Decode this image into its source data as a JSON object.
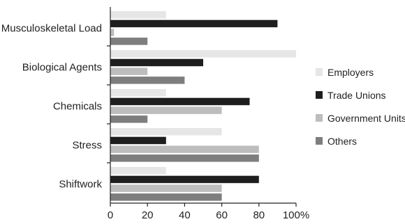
{
  "chart_data": {
    "type": "bar",
    "orientation": "horizontal",
    "categories": [
      "Musculoskeletal Load",
      "Biological Agents",
      "Chemicals",
      "Stress",
      "Shiftwork"
    ],
    "series": [
      {
        "name": "Employers",
        "color": "#e6e6e6",
        "values": [
          30,
          100,
          30,
          60,
          30
        ]
      },
      {
        "name": "Trade Unions",
        "color": "#1e1e1e",
        "values": [
          90,
          50,
          75,
          30,
          80
        ]
      },
      {
        "name": "Government Units",
        "color": "#bdbdbd",
        "values": [
          2,
          20,
          60,
          80,
          60
        ]
      },
      {
        "name": "Others",
        "color": "#7e7e7e",
        "values": [
          20,
          40,
          20,
          80,
          60
        ]
      }
    ],
    "x_ticks": [
      "0",
      "20",
      "40",
      "60",
      "80",
      "100%"
    ],
    "xlim": [
      0,
      100
    ],
    "grid": false,
    "legend": "right"
  }
}
